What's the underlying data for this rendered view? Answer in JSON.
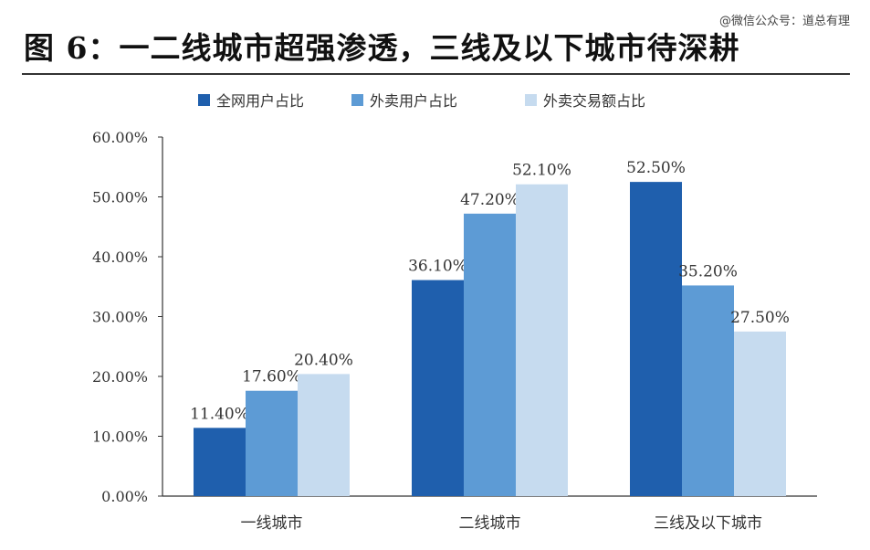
{
  "header": {
    "title": "图 6：一二线城市超强渗透，三线及以下城市待深耕",
    "watermark": "@微信公众号：道总有理"
  },
  "chart_data": {
    "type": "bar",
    "categories": [
      "一线城市",
      "二线城市",
      "三线及以下城市"
    ],
    "series": [
      {
        "name": "全网用户占比",
        "values": [
          11.4,
          36.1,
          52.5
        ],
        "labels": [
          "11.40%",
          "36.10%",
          "52.50%"
        ],
        "color": "#1f5fad"
      },
      {
        "name": "外卖用户占比",
        "values": [
          17.6,
          47.2,
          35.2
        ],
        "labels": [
          "17.60%",
          "47.20%",
          "35.20%"
        ],
        "color": "#5d9bd5"
      },
      {
        "name": "外卖交易额占比",
        "values": [
          20.4,
          52.1,
          27.5
        ],
        "labels": [
          "20.40%",
          "52.10%",
          "27.50%"
        ],
        "color": "#c6dbef"
      }
    ],
    "ylim": [
      0,
      60
    ],
    "yticks": [
      "0.00%",
      "10.00%",
      "20.00%",
      "30.00%",
      "40.00%",
      "50.00%",
      "60.00%"
    ],
    "legend_position": "top",
    "grid": false
  }
}
